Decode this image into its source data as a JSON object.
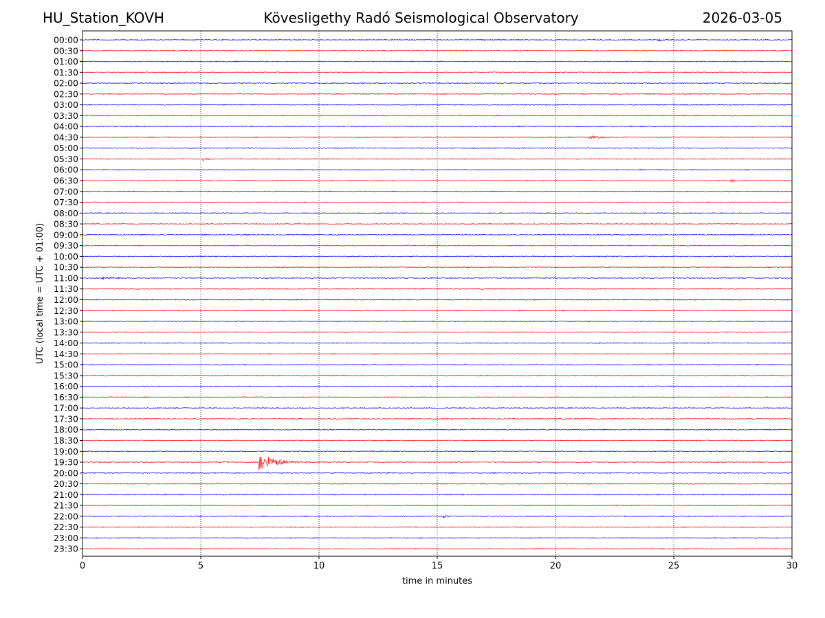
{
  "header": {
    "station": "HU_Station_KOVH",
    "title": "Kövesligethy Radó Seismological Observatory",
    "date": "2026-03-05"
  },
  "chart_data": {
    "type": "line",
    "title": "Kövesligethy Radó Seismological Observatory",
    "xlabel": "time in minutes",
    "ylabel": "UTC (local time = UTC + 01:00)",
    "xlim": [
      0,
      30
    ],
    "xticks": [
      "0",
      "5",
      "10",
      "15",
      "20",
      "25",
      "30"
    ],
    "xtick_values": [
      0,
      5,
      10,
      15,
      20,
      25,
      30
    ],
    "vertical_gridlines": [
      5,
      10,
      15,
      20,
      25
    ],
    "series_colors": [
      "#0000ff",
      "#ff0000"
    ],
    "row_labels": [
      "00:00",
      "00:30",
      "01:00",
      "01:30",
      "02:00",
      "02:30",
      "03:00",
      "03:30",
      "04:00",
      "04:30",
      "05:00",
      "05:30",
      "06:00",
      "06:30",
      "07:00",
      "07:30",
      "08:00",
      "08:30",
      "09:00",
      "09:30",
      "10:00",
      "10:30",
      "11:00",
      "11:30",
      "12:00",
      "12:30",
      "13:00",
      "13:30",
      "14:00",
      "14:30",
      "15:00",
      "15:30",
      "16:00",
      "16:30",
      "17:00",
      "17:30",
      "18:00",
      "18:30",
      "19:00",
      "19:30",
      "20:00",
      "20:30",
      "21:00",
      "21:30",
      "22:00",
      "22:30",
      "23:00",
      "23:30"
    ],
    "events": [
      {
        "row": "00:00",
        "start_min": 24.3,
        "duration_min": 0.8,
        "amplitude": 0.22
      },
      {
        "row": "04:30",
        "start_min": 21.4,
        "duration_min": 2.0,
        "amplitude": 0.18
      },
      {
        "row": "05:30",
        "start_min": 5.1,
        "duration_min": 0.6,
        "amplitude": 0.22
      },
      {
        "row": "06:30",
        "start_min": 27.4,
        "duration_min": 0.4,
        "amplitude": 0.35
      },
      {
        "row": "11:00",
        "start_min": 0.8,
        "duration_min": 1.5,
        "amplitude": 0.2
      },
      {
        "row": "19:30",
        "start_min": 7.45,
        "duration_min": 2.3,
        "amplitude": 1.3
      },
      {
        "row": "22:00",
        "start_min": 15.25,
        "duration_min": 0.35,
        "amplitude": 0.6
      }
    ]
  }
}
